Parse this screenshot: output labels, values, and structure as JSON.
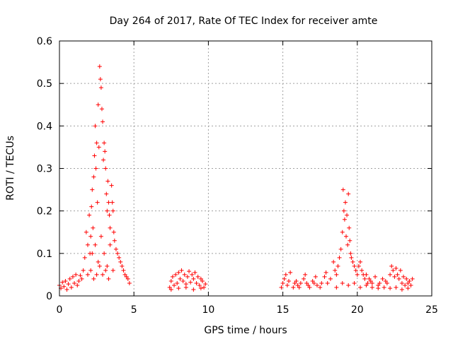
{
  "chart_data": {
    "type": "scatter",
    "title": "Day 264 of 2017, Rate Of TEC Index for receiver amte",
    "xlabel": "GPS time / hours",
    "ylabel": "ROTI / TECUs",
    "xlim": [
      0,
      25
    ],
    "ylim": [
      0,
      0.6
    ],
    "xticks": [
      0,
      5,
      10,
      15,
      20,
      25
    ],
    "yticks": [
      0,
      0.1,
      0.2,
      0.3,
      0.4,
      0.5,
      0.6
    ],
    "xtick_labels": [
      "0",
      "5",
      "10",
      "15",
      "20",
      "25"
    ],
    "ytick_labels": [
      "0",
      "0.1",
      "0.2",
      "0.3",
      "0.4",
      "0.5",
      "0.6"
    ],
    "grid": true,
    "marker": "+",
    "color": "#ff0000",
    "series": [
      {
        "points": [
          [
            0.0,
            0.025
          ],
          [
            0.1,
            0.018
          ],
          [
            0.2,
            0.032
          ],
          [
            0.3,
            0.022
          ],
          [
            0.4,
            0.035
          ],
          [
            0.5,
            0.015
          ],
          [
            0.6,
            0.028
          ],
          [
            0.7,
            0.04
          ],
          [
            0.8,
            0.02
          ],
          [
            0.9,
            0.045
          ],
          [
            1.0,
            0.03
          ],
          [
            1.1,
            0.05
          ],
          [
            1.2,
            0.025
          ],
          [
            1.3,
            0.035
          ],
          [
            1.4,
            0.048
          ],
          [
            1.5,
            0.04
          ],
          [
            1.6,
            0.06
          ],
          [
            1.7,
            0.09
          ],
          [
            1.8,
            0.15
          ],
          [
            1.9,
            0.12
          ],
          [
            2.0,
            0.19
          ],
          [
            2.05,
            0.1
          ],
          [
            2.1,
            0.14
          ],
          [
            2.15,
            0.21
          ],
          [
            2.2,
            0.25
          ],
          [
            2.25,
            0.16
          ],
          [
            2.3,
            0.28
          ],
          [
            2.35,
            0.33
          ],
          [
            2.4,
            0.4
          ],
          [
            2.45,
            0.3
          ],
          [
            2.5,
            0.36
          ],
          [
            2.55,
            0.22
          ],
          [
            2.6,
            0.45
          ],
          [
            2.65,
            0.35
          ],
          [
            2.7,
            0.54
          ],
          [
            2.75,
            0.51
          ],
          [
            2.8,
            0.49
          ],
          [
            2.85,
            0.44
          ],
          [
            2.9,
            0.41
          ],
          [
            2.95,
            0.32
          ],
          [
            3.0,
            0.36
          ],
          [
            3.05,
            0.34
          ],
          [
            3.1,
            0.3
          ],
          [
            3.15,
            0.24
          ],
          [
            3.2,
            0.2
          ],
          [
            3.25,
            0.27
          ],
          [
            3.3,
            0.22
          ],
          [
            3.35,
            0.19
          ],
          [
            3.4,
            0.16
          ],
          [
            3.5,
            0.26
          ],
          [
            3.55,
            0.22
          ],
          [
            3.6,
            0.2
          ],
          [
            3.65,
            0.15
          ],
          [
            3.7,
            0.13
          ],
          [
            3.8,
            0.11
          ],
          [
            3.9,
            0.1
          ],
          [
            4.0,
            0.09
          ],
          [
            4.1,
            0.08
          ],
          [
            4.2,
            0.07
          ],
          [
            4.3,
            0.06
          ],
          [
            4.4,
            0.05
          ],
          [
            4.5,
            0.045
          ],
          [
            4.6,
            0.04
          ],
          [
            4.7,
            0.03
          ],
          [
            2.2,
            0.1
          ],
          [
            2.4,
            0.12
          ],
          [
            2.6,
            0.08
          ],
          [
            2.8,
            0.14
          ],
          [
            3.0,
            0.1
          ],
          [
            3.2,
            0.07
          ],
          [
            3.4,
            0.12
          ],
          [
            3.6,
            0.06
          ],
          [
            1.9,
            0.05
          ],
          [
            2.1,
            0.06
          ],
          [
            2.3,
            0.04
          ],
          [
            2.5,
            0.05
          ],
          [
            2.7,
            0.07
          ],
          [
            2.9,
            0.05
          ],
          [
            3.1,
            0.06
          ],
          [
            3.3,
            0.04
          ],
          [
            7.4,
            0.02
          ],
          [
            7.5,
            0.035
          ],
          [
            7.6,
            0.045
          ],
          [
            7.7,
            0.025
          ],
          [
            7.8,
            0.05
          ],
          [
            7.9,
            0.03
          ],
          [
            8.0,
            0.055
          ],
          [
            8.1,
            0.04
          ],
          [
            8.2,
            0.06
          ],
          [
            8.3,
            0.035
          ],
          [
            8.4,
            0.05
          ],
          [
            8.5,
            0.028
          ],
          [
            8.6,
            0.045
          ],
          [
            8.7,
            0.058
          ],
          [
            8.8,
            0.032
          ],
          [
            8.9,
            0.05
          ],
          [
            9.0,
            0.04
          ],
          [
            9.1,
            0.055
          ],
          [
            9.2,
            0.03
          ],
          [
            9.3,
            0.045
          ],
          [
            9.4,
            0.025
          ],
          [
            9.5,
            0.04
          ],
          [
            9.6,
            0.035
          ],
          [
            9.7,
            0.02
          ],
          [
            9.8,
            0.028
          ],
          [
            7.5,
            0.015
          ],
          [
            8.0,
            0.018
          ],
          [
            8.5,
            0.02
          ],
          [
            9.0,
            0.015
          ],
          [
            9.5,
            0.018
          ],
          [
            14.9,
            0.02
          ],
          [
            15.0,
            0.03
          ],
          [
            15.1,
            0.04
          ],
          [
            15.2,
            0.05
          ],
          [
            15.3,
            0.025
          ],
          [
            15.4,
            0.035
          ],
          [
            15.5,
            0.055
          ],
          [
            15.7,
            0.02
          ],
          [
            15.8,
            0.03
          ],
          [
            15.9,
            0.035
          ],
          [
            16.0,
            0.025
          ],
          [
            16.1,
            0.02
          ],
          [
            16.2,
            0.03
          ],
          [
            16.4,
            0.04
          ],
          [
            16.5,
            0.05
          ],
          [
            16.6,
            0.03
          ],
          [
            16.7,
            0.025
          ],
          [
            16.8,
            0.02
          ],
          [
            17.0,
            0.035
          ],
          [
            17.1,
            0.03
          ],
          [
            17.2,
            0.045
          ],
          [
            17.3,
            0.025
          ],
          [
            17.5,
            0.02
          ],
          [
            17.6,
            0.03
          ],
          [
            17.8,
            0.045
          ],
          [
            17.9,
            0.055
          ],
          [
            18.0,
            0.03
          ],
          [
            18.2,
            0.04
          ],
          [
            18.4,
            0.08
          ],
          [
            18.5,
            0.06
          ],
          [
            18.6,
            0.05
          ],
          [
            18.7,
            0.07
          ],
          [
            18.8,
            0.09
          ],
          [
            18.9,
            0.11
          ],
          [
            19.0,
            0.15
          ],
          [
            19.05,
            0.25
          ],
          [
            19.1,
            0.2
          ],
          [
            19.15,
            0.18
          ],
          [
            19.2,
            0.22
          ],
          [
            19.25,
            0.14
          ],
          [
            19.3,
            0.19
          ],
          [
            19.35,
            0.12
          ],
          [
            19.4,
            0.24
          ],
          [
            19.45,
            0.16
          ],
          [
            19.5,
            0.13
          ],
          [
            19.55,
            0.1
          ],
          [
            19.6,
            0.09
          ],
          [
            19.7,
            0.08
          ],
          [
            19.8,
            0.07
          ],
          [
            19.9,
            0.06
          ],
          [
            20.0,
            0.05
          ],
          [
            20.1,
            0.07
          ],
          [
            20.2,
            0.08
          ],
          [
            20.3,
            0.06
          ],
          [
            20.4,
            0.05
          ],
          [
            20.5,
            0.04
          ],
          [
            20.6,
            0.05
          ],
          [
            20.7,
            0.03
          ],
          [
            20.8,
            0.04
          ],
          [
            20.9,
            0.035
          ],
          [
            21.0,
            0.03
          ],
          [
            21.2,
            0.045
          ],
          [
            21.4,
            0.025
          ],
          [
            21.5,
            0.03
          ],
          [
            21.7,
            0.04
          ],
          [
            21.9,
            0.035
          ],
          [
            22.0,
            0.03
          ],
          [
            22.2,
            0.05
          ],
          [
            22.3,
            0.07
          ],
          [
            22.4,
            0.06
          ],
          [
            22.5,
            0.045
          ],
          [
            22.6,
            0.065
          ],
          [
            22.7,
            0.05
          ],
          [
            22.8,
            0.04
          ],
          [
            22.9,
            0.06
          ],
          [
            23.0,
            0.03
          ],
          [
            23.1,
            0.045
          ],
          [
            23.2,
            0.025
          ],
          [
            23.3,
            0.04
          ],
          [
            23.4,
            0.03
          ],
          [
            23.5,
            0.035
          ],
          [
            23.6,
            0.025
          ],
          [
            23.7,
            0.04
          ],
          [
            18.6,
            0.02
          ],
          [
            19.0,
            0.03
          ],
          [
            19.4,
            0.025
          ],
          [
            19.8,
            0.03
          ],
          [
            20.2,
            0.02
          ],
          [
            20.6,
            0.025
          ],
          [
            21.0,
            0.02
          ],
          [
            21.4,
            0.018
          ],
          [
            21.8,
            0.02
          ],
          [
            22.2,
            0.018
          ],
          [
            22.6,
            0.02
          ],
          [
            23.0,
            0.015
          ],
          [
            23.4,
            0.018
          ]
        ]
      }
    ]
  }
}
